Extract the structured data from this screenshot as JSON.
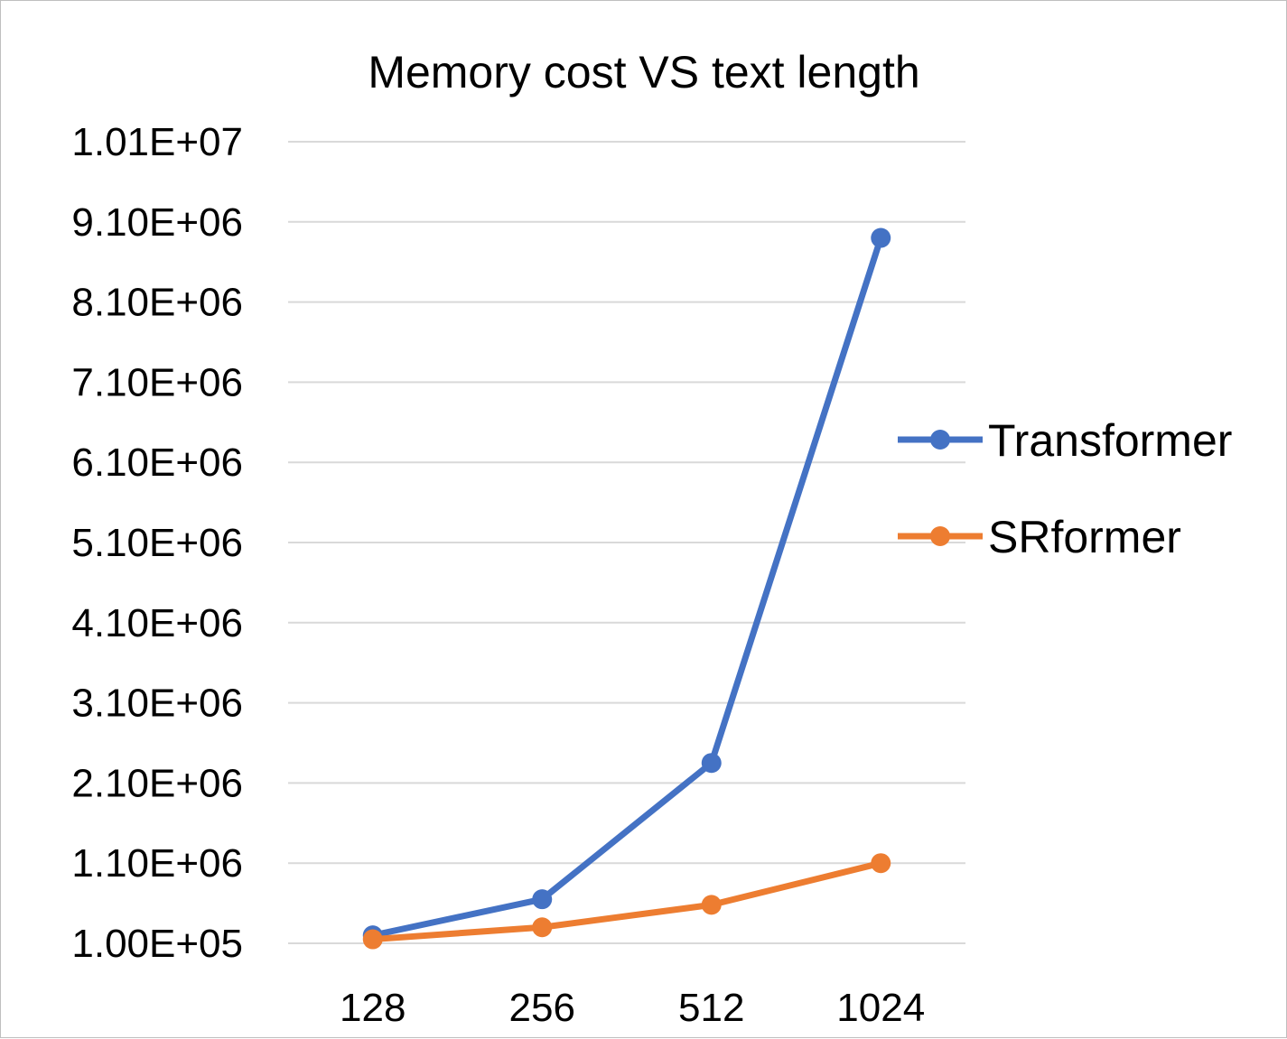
{
  "chart_data": {
    "type": "line",
    "title": "Memory cost VS text length",
    "xlabel": "",
    "ylabel": "",
    "categories": [
      "128",
      "256",
      "512",
      "1024"
    ],
    "y_tick_labels": [
      "1.00E+05",
      "1.10E+06",
      "2.10E+06",
      "3.10E+06",
      "4.10E+06",
      "5.10E+06",
      "6.10E+06",
      "7.10E+06",
      "8.10E+06",
      "9.10E+06",
      "1.01E+07"
    ],
    "y_ticks": [
      100000,
      1100000,
      2100000,
      3100000,
      4100000,
      5100000,
      6100000,
      7100000,
      8100000,
      9100000,
      10100000
    ],
    "ylim": [
      100000,
      10100000
    ],
    "grid": true,
    "legend_position": "right",
    "series": [
      {
        "name": "Transformer",
        "color": "#4472C4",
        "values": [
          200000,
          650000,
          2350000,
          8900000
        ]
      },
      {
        "name": "SRformer",
        "color": "#ED7D31",
        "values": [
          150000,
          300000,
          580000,
          1100000
        ]
      }
    ]
  }
}
